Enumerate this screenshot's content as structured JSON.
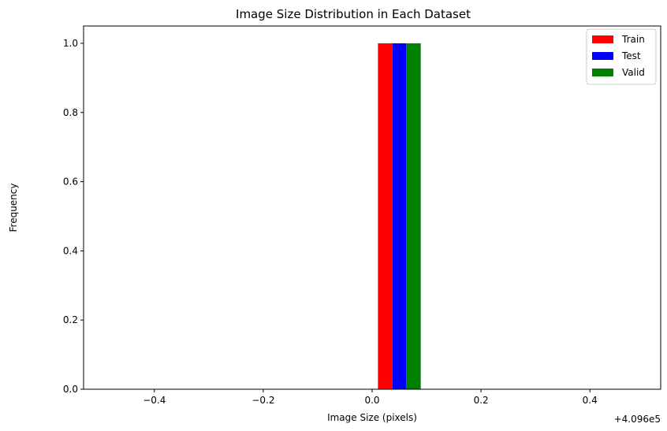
{
  "chart_data": {
    "type": "bar",
    "title": "Image Size Distribution in Each Dataset",
    "xlabel": "Image Size (pixels)",
    "ylabel": "Frequency",
    "x_offset_label": "+4.096e5",
    "xlim": [
      -0.53,
      0.53
    ],
    "ylim": [
      0,
      1.05
    ],
    "x_ticks": [
      {
        "value": -0.4,
        "label": "−0.4"
      },
      {
        "value": -0.2,
        "label": "−0.2"
      },
      {
        "value": 0.0,
        "label": "0.0"
      },
      {
        "value": 0.2,
        "label": "0.2"
      },
      {
        "value": 0.4,
        "label": "0.4"
      }
    ],
    "y_ticks": [
      {
        "value": 0.0,
        "label": "0.0"
      },
      {
        "value": 0.2,
        "label": "0.2"
      },
      {
        "value": 0.4,
        "label": "0.4"
      },
      {
        "value": 0.6,
        "label": "0.6"
      },
      {
        "value": 0.8,
        "label": "0.8"
      },
      {
        "value": 1.0,
        "label": "1.0"
      }
    ],
    "grid": false,
    "legend_position": "top-right",
    "series": [
      {
        "name": "Train",
        "color": "#ff0000",
        "x_start": 0.0107,
        "x_end": 0.0373,
        "value": 1
      },
      {
        "name": "Test",
        "color": "#0000ff",
        "x_start": 0.0373,
        "x_end": 0.0627,
        "value": 1
      },
      {
        "name": "Valid",
        "color": "#008000",
        "x_start": 0.0627,
        "x_end": 0.0893,
        "value": 1
      }
    ]
  }
}
